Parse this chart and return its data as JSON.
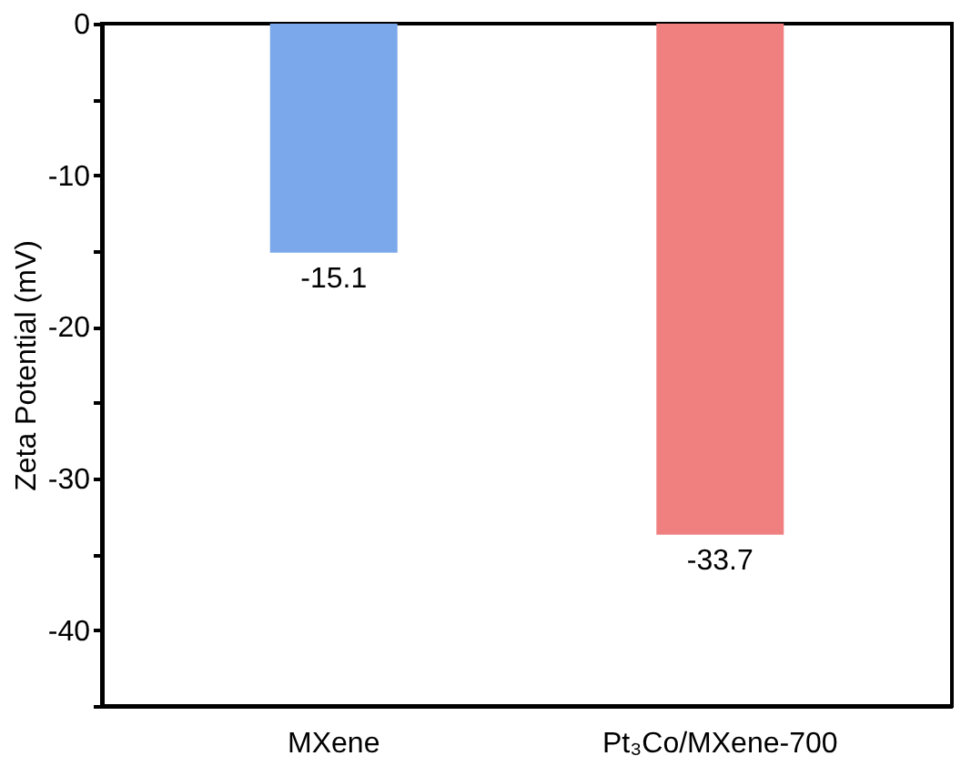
{
  "chart_data": {
    "type": "bar",
    "ylabel": "Zeta Potential (mV)",
    "categories": [
      "MXene",
      "Pt₃Co/MXene-700"
    ],
    "values": [
      -15.1,
      -33.7
    ],
    "colors": [
      "#7aa8ea",
      "#f08080"
    ],
    "data_labels": true,
    "ylim": [
      -45,
      0
    ],
    "yticks": [
      0,
      {
        "value": -5,
        "label": null
      },
      -10,
      {
        "value": -15,
        "label": null
      },
      -20,
      {
        "value": -25,
        "label": null
      },
      -30,
      {
        "value": -35,
        "label": null
      },
      -40,
      {
        "value": -45,
        "label": null
      }
    ],
    "grid": false
  }
}
